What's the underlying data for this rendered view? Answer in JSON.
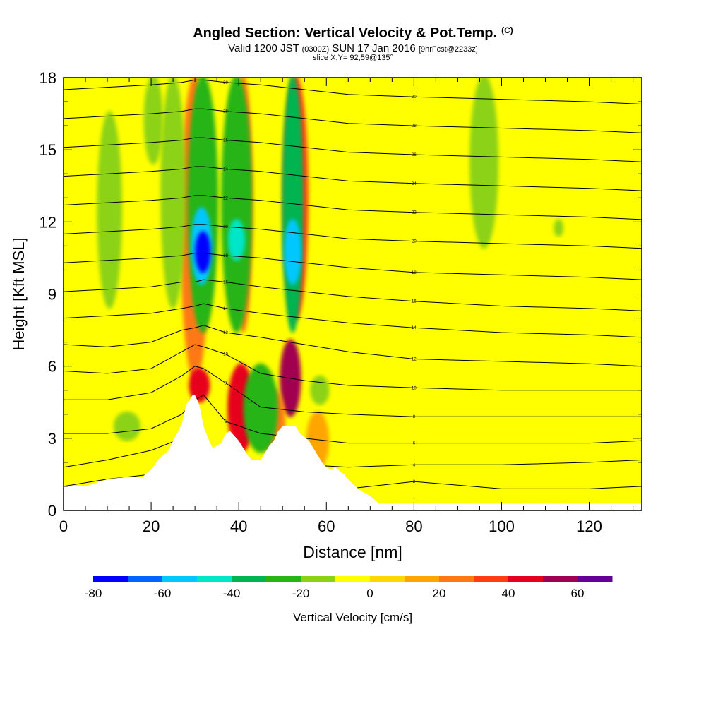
{
  "chart_data": {
    "type": "heatmap",
    "title": "Angled Section: Vertical Velocity & Pot.Temp.",
    "title_tag": "(C)",
    "subtitle": {
      "prefix": "Valid 1200 JST",
      "utc": "(0300Z)",
      "date": "SUN 17 Jan 2016",
      "forecast": "[9hrFcst@2233z]"
    },
    "slice_label": "slice X,Y= 92,59@135°",
    "xlabel": "Distance [nm]",
    "ylabel": "Height [Kft MSL]",
    "xlim": [
      0,
      132
    ],
    "ylim": [
      0,
      18
    ],
    "x_ticks": [
      "0",
      "20",
      "40",
      "60",
      "80",
      "100",
      "120"
    ],
    "x_tick_values": [
      0,
      20,
      40,
      60,
      80,
      100,
      120
    ],
    "y_ticks": [
      "0",
      "3",
      "6",
      "9",
      "12",
      "15",
      "18"
    ],
    "y_tick_values": [
      0,
      3,
      6,
      9,
      12,
      15,
      18
    ],
    "grid": false,
    "background_color": "#ffff00",
    "colorbar": {
      "label": "Vertical Velocity [cm/s]",
      "tick_labels": [
        "-80",
        "-60",
        "-40",
        "-20",
        "0",
        "20",
        "40",
        "60"
      ],
      "levels": [
        -80,
        -70,
        -60,
        -50,
        -40,
        -30,
        -20,
        -10,
        0,
        10,
        20,
        30,
        40,
        50,
        60,
        70
      ],
      "colors": [
        "#0000ff",
        "#0064ff",
        "#00c8ff",
        "#00e6c8",
        "#00b450",
        "#28b414",
        "#8cd214",
        "#ffff00",
        "#ffd700",
        "#ffa500",
        "#ff7814",
        "#ff3c14",
        "#e6001e",
        "#a00050",
        "#640096"
      ]
    },
    "terrain": {
      "x": [
        0,
        5,
        10,
        15,
        18,
        20,
        22,
        24,
        25,
        27,
        28,
        29.5,
        30,
        31,
        32,
        33,
        34,
        35,
        36,
        37,
        38,
        40,
        42,
        43,
        45,
        46,
        47,
        48,
        49,
        50,
        51,
        53,
        54,
        56,
        57,
        58,
        59,
        60,
        61,
        62,
        64,
        66,
        68,
        70,
        72,
        80,
        100,
        132
      ],
      "height": [
        1.0,
        1.0,
        1.3,
        1.4,
        1.4,
        1.7,
        2.2,
        2.5,
        2.9,
        3.6,
        4.4,
        4.8,
        4.8,
        4.4,
        3.5,
        3.0,
        2.6,
        2.7,
        2.8,
        3.2,
        3.3,
        2.9,
        2.3,
        2.1,
        2.1,
        2.4,
        2.7,
        2.9,
        3.3,
        3.5,
        3.5,
        3.5,
        3.2,
        2.9,
        2.6,
        2.3,
        2.0,
        1.8,
        1.7,
        1.8,
        1.5,
        1.1,
        0.8,
        0.6,
        0.3,
        0.3,
        0.3,
        0.3
      ]
    },
    "updrafts": [
      {
        "x": 30,
        "y_from": 5.5,
        "y_to": 18,
        "width": 1.5,
        "value": 25
      },
      {
        "x": 31,
        "y_from": 4.6,
        "y_to": 5.8,
        "width": 1.1,
        "value": 45
      },
      {
        "x": 40.5,
        "y_from": 2.5,
        "y_to": 6.0,
        "width": 1.4,
        "value": 45
      },
      {
        "x": 41,
        "y_from": 7.5,
        "y_to": 18,
        "width": 1.0,
        "value": 25
      },
      {
        "x": 51.8,
        "y_from": 4.0,
        "y_to": 7.0,
        "width": 1.1,
        "value": 55
      },
      {
        "x": 53,
        "y_from": 8.0,
        "y_to": 18,
        "width": 1.3,
        "value": 35
      },
      {
        "x": 47.5,
        "y_from": 2.5,
        "y_to": 5.0,
        "width": 1.4,
        "value": 25
      },
      {
        "x": 58,
        "y_from": 1.8,
        "y_to": 4.0,
        "width": 1.2,
        "value": 15
      }
    ],
    "downdrafts": [
      {
        "x": 10.5,
        "y_from": 8.5,
        "y_to": 16.5,
        "width": 1.3,
        "value": -15
      },
      {
        "x": 25,
        "y_from": 8.5,
        "y_to": 18,
        "width": 1.3,
        "value": -15
      },
      {
        "x": 20.5,
        "y_from": 14.5,
        "y_to": 18,
        "width": 1.0,
        "value": -15
      },
      {
        "x": 31.8,
        "y_from": 7.5,
        "y_to": 18,
        "width": 1.6,
        "value": -30
      },
      {
        "x": 31.5,
        "y_from": 9.5,
        "y_to": 12.5,
        "width": 1.1,
        "value": -55
      },
      {
        "x": 31.8,
        "y_from": 10.0,
        "y_to": 11.5,
        "width": 0.8,
        "value": -75
      },
      {
        "x": 39.5,
        "y_from": 7.5,
        "y_to": 18,
        "width": 1.6,
        "value": -30
      },
      {
        "x": 39.5,
        "y_from": 10.5,
        "y_to": 12.0,
        "width": 0.9,
        "value": -45
      },
      {
        "x": 45,
        "y_from": 2.5,
        "y_to": 6.0,
        "width": 1.8,
        "value": -25
      },
      {
        "x": 52.3,
        "y_from": 7.5,
        "y_to": 18,
        "width": 1.1,
        "value": -35
      },
      {
        "x": 52.3,
        "y_from": 9.5,
        "y_to": 12.0,
        "width": 0.9,
        "value": -55
      },
      {
        "x": 58.5,
        "y_from": 4.5,
        "y_to": 5.5,
        "width": 1.0,
        "value": -15
      },
      {
        "x": 14.5,
        "y_from": 3.0,
        "y_to": 4.0,
        "width": 1.4,
        "value": -15
      },
      {
        "x": 96,
        "y_from": 11.0,
        "y_to": 18,
        "width": 1.5,
        "value": -15
      },
      {
        "x": 113,
        "y_from": 11.5,
        "y_to": 12.0,
        "width": 0.5,
        "value": -15
      }
    ],
    "isentropes": [
      {
        "label": "2",
        "levels": [
          1.0,
          1.3,
          1.5,
          1.8,
          1.2,
          0.9,
          0.9,
          0.9,
          0.9,
          0.9,
          1.2,
          0.9,
          0.9,
          1.0
        ]
      },
      {
        "label": "4",
        "levels": [
          1.8,
          2.1,
          2.5,
          3.0,
          3.2,
          2.8,
          2.1,
          1.9,
          1.9,
          1.8,
          1.9,
          1.9,
          2.0,
          2.1
        ]
      },
      {
        "label": "6",
        "levels": [
          3.2,
          3.2,
          3.4,
          4.0,
          4.6,
          4.8,
          3.7,
          3.2,
          3.0,
          2.8,
          2.8,
          2.8,
          2.8,
          2.9
        ]
      },
      {
        "label": "8",
        "levels": [
          4.6,
          4.6,
          4.9,
          5.6,
          6.0,
          5.9,
          5.3,
          4.3,
          4.1,
          4.0,
          3.9,
          3.9,
          3.9,
          3.9
        ]
      },
      {
        "label": "10",
        "levels": [
          5.8,
          5.7,
          5.9,
          6.6,
          6.9,
          6.8,
          6.5,
          5.7,
          5.4,
          5.2,
          5.1,
          5.0,
          5.0,
          5.0
        ]
      },
      {
        "label": "12",
        "levels": [
          6.9,
          6.8,
          7.0,
          7.5,
          7.6,
          7.7,
          7.4,
          7.2,
          6.9,
          6.6,
          6.3,
          6.2,
          6.1,
          6.0
        ]
      },
      {
        "label": "14",
        "levels": [
          8.0,
          8.1,
          8.2,
          8.4,
          8.5,
          8.6,
          8.4,
          8.2,
          8.0,
          7.8,
          7.6,
          7.4,
          7.3,
          7.2
        ]
      },
      {
        "label": "16",
        "levels": [
          9.1,
          9.2,
          9.3,
          9.5,
          9.5,
          9.6,
          9.5,
          9.3,
          9.1,
          8.9,
          8.7,
          8.5,
          8.4,
          8.3
        ]
      },
      {
        "label": "18",
        "levels": [
          10.3,
          10.4,
          10.5,
          10.6,
          10.7,
          10.7,
          10.6,
          10.5,
          10.3,
          10.1,
          9.9,
          9.8,
          9.7,
          9.6
        ]
      },
      {
        "label": "20",
        "levels": [
          11.5,
          11.6,
          11.7,
          11.8,
          11.9,
          11.9,
          11.8,
          11.7,
          11.5,
          11.3,
          11.2,
          11.1,
          11.0,
          10.9
        ]
      },
      {
        "label": "22",
        "levels": [
          12.7,
          12.8,
          12.9,
          13.0,
          13.1,
          13.1,
          13.0,
          12.9,
          12.7,
          12.5,
          12.4,
          12.3,
          12.2,
          12.1
        ]
      },
      {
        "label": "24",
        "levels": [
          13.9,
          14.0,
          14.1,
          14.2,
          14.3,
          14.3,
          14.2,
          14.1,
          13.9,
          13.7,
          13.6,
          13.5,
          13.4,
          13.3
        ]
      },
      {
        "label": "26",
        "levels": [
          15.1,
          15.2,
          15.3,
          15.4,
          15.5,
          15.5,
          15.4,
          15.3,
          15.1,
          14.9,
          14.8,
          14.7,
          14.6,
          14.5
        ]
      },
      {
        "label": "28",
        "levels": [
          16.3,
          16.4,
          16.5,
          16.6,
          16.7,
          16.7,
          16.6,
          16.5,
          16.3,
          16.1,
          16.0,
          15.9,
          15.8,
          15.7
        ]
      },
      {
        "label": "30",
        "levels": [
          17.5,
          17.6,
          17.7,
          17.8,
          17.9,
          17.9,
          17.8,
          17.7,
          17.5,
          17.3,
          17.2,
          17.1,
          17.0,
          16.9
        ]
      }
    ],
    "isentrope_x": [
      0,
      10,
      20,
      27,
      30,
      32,
      37,
      45,
      55,
      65,
      80,
      100,
      120,
      132
    ]
  }
}
